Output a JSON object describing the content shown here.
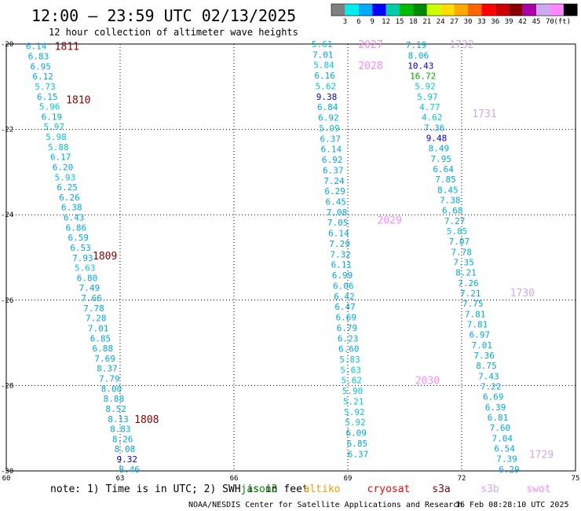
{
  "title": "12:00 — 23:59 UTC 02/13/2025",
  "subtitle": "12 hour collection of altimeter wave heights",
  "legend": {
    "colors": [
      "#808080",
      "#00eeee",
      "#00aaff",
      "#0000ff",
      "#00ccaa",
      "#00bb00",
      "#008800",
      "#ccff00",
      "#ffdd00",
      "#ffaa00",
      "#ff6600",
      "#ff0000",
      "#cc0000",
      "#880000",
      "#aa00aa",
      "#ccaaee",
      "#ff88ff",
      "#000000"
    ],
    "labels": [
      "3",
      "6",
      "9",
      "12",
      "15",
      "18",
      "21",
      "24",
      "27",
      "30",
      "33",
      "36",
      "39",
      "42",
      "45",
      "70"
    ],
    "unit": "(ft)"
  },
  "axes": {
    "x_ticks": [
      "60",
      "63",
      "66",
      "69",
      "72",
      "75"
    ],
    "y_ticks": [
      "-20",
      "-22",
      "-24",
      "-26",
      "-28",
      "-30"
    ]
  },
  "footer": {
    "note": "note: 1) Time is in UTC; 2) SWH is in feet",
    "satellites": [
      {
        "name": "jason3",
        "color": "#008800"
      },
      {
        "name": "altiko",
        "color": "#ff9900"
      },
      {
        "name": "cryosat",
        "color": "#ff0000"
      },
      {
        "name": "s3a",
        "color": "#880000"
      },
      {
        "name": "s3b",
        "color": "#ccaaee"
      },
      {
        "name": "swot",
        "color": "#ff88ff"
      }
    ],
    "credit": "NOAA/NESDIS Center for Satellite Applications and Research",
    "timestamp": "16 Feb 08:28:10 UTC 2025"
  },
  "chart_data": {
    "type": "scatter",
    "xlim": [
      60,
      75
    ],
    "ylim": [
      -30,
      -20
    ],
    "grid": true,
    "tracks": [
      {
        "satellite": "s3a",
        "labels": [
          {
            "text": "1811",
            "lon": 61.6,
            "lat": -20.05,
            "color": "#880000"
          },
          {
            "text": "1810",
            "lon": 61.9,
            "lat": -21.3,
            "color": "#880000"
          },
          {
            "text": "1809",
            "lon": 62.6,
            "lat": -24.95,
            "color": "#880000"
          },
          {
            "text": "1808",
            "lon": 63.7,
            "lat": -28.78,
            "color": "#880000"
          }
        ],
        "start": {
          "lon": 60.79,
          "lat": -20.05
        },
        "end": {
          "lon": 63.24,
          "lat": -29.96
        },
        "values": [
          "6.14",
          "6.83",
          "6.95",
          "6.12",
          "5.73",
          "6.15",
          "5.96",
          "6.19",
          "5.97",
          "5.98",
          "5.88",
          "6.17",
          "6.20",
          "5.93",
          "6.25",
          "6.26",
          "6.38",
          "6.43",
          "6.86",
          "6.59",
          "6.53",
          "7.93",
          "5.63",
          "6.80",
          "7.49",
          "7.66",
          "7.78",
          "7.28",
          "7.01",
          "6.85",
          "6.88",
          "7.69",
          "8.37",
          "7.79",
          "8.00",
          "8.88",
          "8.52",
          "8.13",
          "8.83",
          "8.26",
          "8.08",
          "9.32",
          "8.46"
        ]
      },
      {
        "satellite": "swot",
        "labels": [
          {
            "text": "2027",
            "lon": 69.6,
            "lat": -20.0,
            "color": "#ff88ff"
          },
          {
            "text": "2028",
            "lon": 69.6,
            "lat": -20.5,
            "color": "#ff88ff"
          },
          {
            "text": "2029",
            "lon": 70.1,
            "lat": -24.12,
            "color": "#ff88ff"
          },
          {
            "text": "2030",
            "lon": 71.1,
            "lat": -27.87,
            "color": "#ff88ff"
          }
        ],
        "start": {
          "lon": 68.32,
          "lat": -20.0
        },
        "end": {
          "lon": 69.27,
          "lat": -29.6
        },
        "values": [
          "5.61",
          "7.01",
          "5.84",
          "6.16",
          "5.62",
          "9.38",
          "6.84",
          "6.92",
          "5.99",
          "6.37",
          "6.14",
          "6.92",
          "6.37",
          "7.24",
          "6.29",
          "6.45",
          "7.08",
          "7.05",
          "6.14",
          "7.29",
          "7.32",
          "6.11",
          "6.99",
          "6.06",
          "6.42",
          "6.47",
          "6.69",
          "6.79",
          "6.23",
          "6.60",
          "5.83",
          "5.63",
          "5.62",
          "5.90",
          "5.21",
          "5.92",
          "5.92",
          "6.09",
          "6.85",
          "6.37"
        ]
      },
      {
        "satellite": "s3b",
        "labels": [
          {
            "text": "1732",
            "lon": 72.0,
            "lat": -20.0,
            "color": "#ccaaee"
          },
          {
            "text": "1731",
            "lon": 72.6,
            "lat": -21.62,
            "color": "#ccaaee"
          },
          {
            "text": "1730",
            "lon": 73.6,
            "lat": -25.82,
            "color": "#ccaaee"
          },
          {
            "text": "1729",
            "lon": 74.1,
            "lat": -29.6,
            "color": "#ccaaee"
          }
        ],
        "start": {
          "lon": 70.8,
          "lat": -20.02
        },
        "end": {
          "lon": 73.25,
          "lat": -29.96
        },
        "values": [
          "7.19",
          "8.06",
          "10.43",
          "16.72",
          "5.92",
          "5.97",
          "4.77",
          "4.62",
          "7.36",
          "9.48",
          "8.49",
          "7.95",
          "6.64",
          "7.85",
          "8.45",
          "7.38",
          "6.68",
          "7.27",
          "5.85",
          "7.07",
          "7.78",
          "7.35",
          "8.21",
          "7.26",
          "7.21",
          "7.75",
          "7.81",
          "7.81",
          "6.97",
          "7.01",
          "7.36",
          "8.75",
          "7.43",
          "7.22",
          "6.69",
          "6.39",
          "6.81",
          "7.60",
          "7.04",
          "6.54",
          "7.39",
          "6.29"
        ]
      }
    ]
  }
}
